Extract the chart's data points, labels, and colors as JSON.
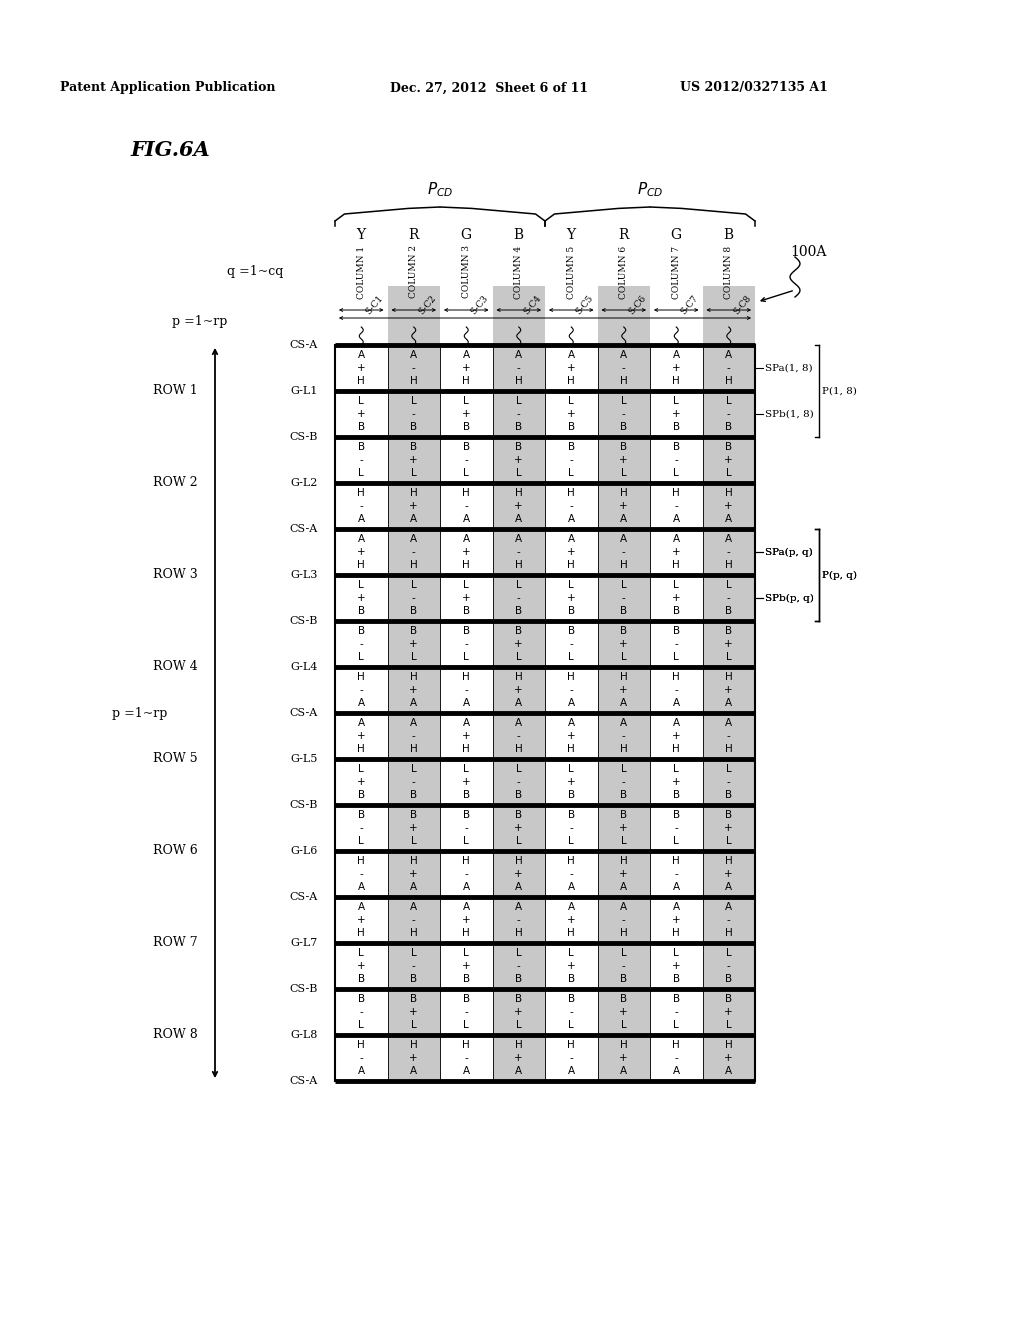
{
  "header_text1": "Patent Application Publication",
  "header_text2": "Dec. 27, 2012  Sheet 6 of 11",
  "header_text3": "US 2012/0327135 A1",
  "title": "FIG.6A",
  "columns": [
    "Y",
    "R",
    "G",
    "B",
    "Y",
    "R",
    "G",
    "B"
  ],
  "col_labels": [
    "COLUMN 1",
    "COLUMN 2",
    "COLUMN 3",
    "COLUMN 4",
    "COLUMN 5",
    "COLUMN 6",
    "COLUMN 7",
    "COLUMN 8"
  ],
  "signal_labels": [
    "S-C1",
    "S-C2",
    "S-C3",
    "S-C4",
    "S-C5",
    "S-C6",
    "S-C7",
    "S-C8"
  ],
  "q_label": "q =1~cq",
  "p_label": "p =1~rp",
  "device_label": "100A",
  "rows": [
    {
      "row_label": "ROW 1",
      "cs_top": "CS-A",
      "gate_line": "G-L1",
      "cs_bot": "CS-B",
      "spa_cells": [
        {
          "vals": [
            "A",
            "+",
            "H"
          ],
          "shade": false
        },
        {
          "vals": [
            "A",
            "-",
            "H"
          ],
          "shade": true
        },
        {
          "vals": [
            "A",
            "+",
            "H"
          ],
          "shade": false
        },
        {
          "vals": [
            "A",
            "-",
            "H"
          ],
          "shade": true
        },
        {
          "vals": [
            "A",
            "+",
            "H"
          ],
          "shade": false
        },
        {
          "vals": [
            "A",
            "-",
            "H"
          ],
          "shade": true
        },
        {
          "vals": [
            "A",
            "+",
            "H"
          ],
          "shade": false
        },
        {
          "vals": [
            "A",
            "-",
            "H"
          ],
          "shade": true
        }
      ],
      "spb_cells": [
        {
          "vals": [
            "L",
            "+",
            "B"
          ],
          "shade": false
        },
        {
          "vals": [
            "L",
            "-",
            "B"
          ],
          "shade": true
        },
        {
          "vals": [
            "L",
            "+",
            "B"
          ],
          "shade": false
        },
        {
          "vals": [
            "L",
            "-",
            "B"
          ],
          "shade": true
        },
        {
          "vals": [
            "L",
            "+",
            "B"
          ],
          "shade": false
        },
        {
          "vals": [
            "L",
            "-",
            "B"
          ],
          "shade": true
        },
        {
          "vals": [
            "L",
            "+",
            "B"
          ],
          "shade": false
        },
        {
          "vals": [
            "L",
            "-",
            "B"
          ],
          "shade": true
        }
      ],
      "spa_label": "SPa(1, 8)",
      "spb_label": "SPb(1, 8)",
      "p_label": "P(1, 8)"
    },
    {
      "row_label": "ROW 2",
      "cs_top": "CS-B",
      "gate_line": "G-L2",
      "cs_bot": "CS-A",
      "spa_cells": [
        {
          "vals": [
            "B",
            "-",
            "L"
          ],
          "shade": false
        },
        {
          "vals": [
            "B",
            "+",
            "L"
          ],
          "shade": true
        },
        {
          "vals": [
            "B",
            "-",
            "L"
          ],
          "shade": false
        },
        {
          "vals": [
            "B",
            "+",
            "L"
          ],
          "shade": true
        },
        {
          "vals": [
            "B",
            "-",
            "L"
          ],
          "shade": false
        },
        {
          "vals": [
            "B",
            "+",
            "L"
          ],
          "shade": true
        },
        {
          "vals": [
            "B",
            "-",
            "L"
          ],
          "shade": false
        },
        {
          "vals": [
            "B",
            "+",
            "L"
          ],
          "shade": true
        }
      ],
      "spb_cells": [
        {
          "vals": [
            "H",
            "-",
            "A"
          ],
          "shade": false
        },
        {
          "vals": [
            "H",
            "+",
            "A"
          ],
          "shade": true
        },
        {
          "vals": [
            "H",
            "-",
            "A"
          ],
          "shade": false
        },
        {
          "vals": [
            "H",
            "+",
            "A"
          ],
          "shade": true
        },
        {
          "vals": [
            "H",
            "-",
            "A"
          ],
          "shade": false
        },
        {
          "vals": [
            "H",
            "+",
            "A"
          ],
          "shade": true
        },
        {
          "vals": [
            "H",
            "-",
            "A"
          ],
          "shade": false
        },
        {
          "vals": [
            "H",
            "+",
            "A"
          ],
          "shade": true
        }
      ]
    },
    {
      "row_label": "ROW 3",
      "cs_top": "CS-A",
      "gate_line": "G-L3",
      "cs_bot": "CS-B",
      "spa_cells": [
        {
          "vals": [
            "A",
            "+",
            "H"
          ],
          "shade": false
        },
        {
          "vals": [
            "A",
            "-",
            "H"
          ],
          "shade": true
        },
        {
          "vals": [
            "A",
            "+",
            "H"
          ],
          "shade": false
        },
        {
          "vals": [
            "A",
            "-",
            "H"
          ],
          "shade": true
        },
        {
          "vals": [
            "A",
            "+",
            "H"
          ],
          "shade": false
        },
        {
          "vals": [
            "A",
            "-",
            "H"
          ],
          "shade": true
        },
        {
          "vals": [
            "A",
            "+",
            "H"
          ],
          "shade": false
        },
        {
          "vals": [
            "A",
            "-",
            "H"
          ],
          "shade": true
        }
      ],
      "spb_cells": [
        {
          "vals": [
            "L",
            "+",
            "B"
          ],
          "shade": false
        },
        {
          "vals": [
            "L",
            "-",
            "B"
          ],
          "shade": true
        },
        {
          "vals": [
            "L",
            "+",
            "B"
          ],
          "shade": false
        },
        {
          "vals": [
            "L",
            "-",
            "B"
          ],
          "shade": true
        },
        {
          "vals": [
            "L",
            "+",
            "B"
          ],
          "shade": false
        },
        {
          "vals": [
            "L",
            "-",
            "B"
          ],
          "shade": true
        },
        {
          "vals": [
            "L",
            "+",
            "B"
          ],
          "shade": false
        },
        {
          "vals": [
            "L",
            "-",
            "B"
          ],
          "shade": true
        }
      ],
      "spa_label": "SPa(p, q)",
      "spb_label": "SPb(p, q)",
      "p_label": "P(p, q)"
    },
    {
      "row_label": "ROW 4",
      "cs_top": "CS-B",
      "gate_line": "G-L4",
      "cs_bot": "CS-A",
      "spa_cells": [
        {
          "vals": [
            "B",
            "-",
            "L"
          ],
          "shade": false
        },
        {
          "vals": [
            "B",
            "+",
            "L"
          ],
          "shade": true
        },
        {
          "vals": [
            "B",
            "-",
            "L"
          ],
          "shade": false
        },
        {
          "vals": [
            "B",
            "+",
            "L"
          ],
          "shade": true
        },
        {
          "vals": [
            "B",
            "-",
            "L"
          ],
          "shade": false
        },
        {
          "vals": [
            "B",
            "+",
            "L"
          ],
          "shade": true
        },
        {
          "vals": [
            "B",
            "-",
            "L"
          ],
          "shade": false
        },
        {
          "vals": [
            "B",
            "+",
            "L"
          ],
          "shade": true
        }
      ],
      "spb_cells": [
        {
          "vals": [
            "H",
            "-",
            "A"
          ],
          "shade": false
        },
        {
          "vals": [
            "H",
            "+",
            "A"
          ],
          "shade": true
        },
        {
          "vals": [
            "H",
            "-",
            "A"
          ],
          "shade": false
        },
        {
          "vals": [
            "H",
            "+",
            "A"
          ],
          "shade": true
        },
        {
          "vals": [
            "H",
            "-",
            "A"
          ],
          "shade": false
        },
        {
          "vals": [
            "H",
            "+",
            "A"
          ],
          "shade": true
        },
        {
          "vals": [
            "H",
            "-",
            "A"
          ],
          "shade": false
        },
        {
          "vals": [
            "H",
            "+",
            "A"
          ],
          "shade": true
        }
      ]
    },
    {
      "row_label": "ROW 5",
      "cs_top": "CS-A",
      "gate_line": "G-L5",
      "cs_bot": "CS-B",
      "spa_cells": [
        {
          "vals": [
            "A",
            "+",
            "H"
          ],
          "shade": false
        },
        {
          "vals": [
            "A",
            "-",
            "H"
          ],
          "shade": true
        },
        {
          "vals": [
            "A",
            "+",
            "H"
          ],
          "shade": false
        },
        {
          "vals": [
            "A",
            "-",
            "H"
          ],
          "shade": true
        },
        {
          "vals": [
            "A",
            "+",
            "H"
          ],
          "shade": false
        },
        {
          "vals": [
            "A",
            "-",
            "H"
          ],
          "shade": true
        },
        {
          "vals": [
            "A",
            "+",
            "H"
          ],
          "shade": false
        },
        {
          "vals": [
            "A",
            "-",
            "H"
          ],
          "shade": true
        }
      ],
      "spb_cells": [
        {
          "vals": [
            "L",
            "+",
            "B"
          ],
          "shade": false
        },
        {
          "vals": [
            "L",
            "-",
            "B"
          ],
          "shade": true
        },
        {
          "vals": [
            "L",
            "+",
            "B"
          ],
          "shade": false
        },
        {
          "vals": [
            "L",
            "-",
            "B"
          ],
          "shade": true
        },
        {
          "vals": [
            "L",
            "+",
            "B"
          ],
          "shade": false
        },
        {
          "vals": [
            "L",
            "-",
            "B"
          ],
          "shade": true
        },
        {
          "vals": [
            "L",
            "+",
            "B"
          ],
          "shade": false
        },
        {
          "vals": [
            "L",
            "-",
            "B"
          ],
          "shade": true
        }
      ]
    },
    {
      "row_label": "ROW 6",
      "cs_top": "CS-B",
      "gate_line": "G-L6",
      "cs_bot": "CS-A",
      "spa_cells": [
        {
          "vals": [
            "B",
            "-",
            "L"
          ],
          "shade": false
        },
        {
          "vals": [
            "B",
            "+",
            "L"
          ],
          "shade": true
        },
        {
          "vals": [
            "B",
            "-",
            "L"
          ],
          "shade": false
        },
        {
          "vals": [
            "B",
            "+",
            "L"
          ],
          "shade": true
        },
        {
          "vals": [
            "B",
            "-",
            "L"
          ],
          "shade": false
        },
        {
          "vals": [
            "B",
            "+",
            "L"
          ],
          "shade": true
        },
        {
          "vals": [
            "B",
            "-",
            "L"
          ],
          "shade": false
        },
        {
          "vals": [
            "B",
            "+",
            "L"
          ],
          "shade": true
        }
      ],
      "spb_cells": [
        {
          "vals": [
            "H",
            "-",
            "A"
          ],
          "shade": false
        },
        {
          "vals": [
            "H",
            "+",
            "A"
          ],
          "shade": true
        },
        {
          "vals": [
            "H",
            "-",
            "A"
          ],
          "shade": false
        },
        {
          "vals": [
            "H",
            "+",
            "A"
          ],
          "shade": true
        },
        {
          "vals": [
            "H",
            "-",
            "A"
          ],
          "shade": false
        },
        {
          "vals": [
            "H",
            "+",
            "A"
          ],
          "shade": true
        },
        {
          "vals": [
            "H",
            "-",
            "A"
          ],
          "shade": false
        },
        {
          "vals": [
            "H",
            "+",
            "A"
          ],
          "shade": true
        }
      ]
    },
    {
      "row_label": "ROW 7",
      "cs_top": "CS-A",
      "gate_line": "G-L7",
      "cs_bot": "CS-B",
      "spa_cells": [
        {
          "vals": [
            "A",
            "+",
            "H"
          ],
          "shade": false
        },
        {
          "vals": [
            "A",
            "-",
            "H"
          ],
          "shade": true
        },
        {
          "vals": [
            "A",
            "+",
            "H"
          ],
          "shade": false
        },
        {
          "vals": [
            "A",
            "-",
            "H"
          ],
          "shade": true
        },
        {
          "vals": [
            "A",
            "+",
            "H"
          ],
          "shade": false
        },
        {
          "vals": [
            "A",
            "-",
            "H"
          ],
          "shade": true
        },
        {
          "vals": [
            "A",
            "+",
            "H"
          ],
          "shade": false
        },
        {
          "vals": [
            "A",
            "-",
            "H"
          ],
          "shade": true
        }
      ],
      "spb_cells": [
        {
          "vals": [
            "L",
            "+",
            "B"
          ],
          "shade": false
        },
        {
          "vals": [
            "L",
            "-",
            "B"
          ],
          "shade": true
        },
        {
          "vals": [
            "L",
            "+",
            "B"
          ],
          "shade": false
        },
        {
          "vals": [
            "L",
            "-",
            "B"
          ],
          "shade": true
        },
        {
          "vals": [
            "L",
            "+",
            "B"
          ],
          "shade": false
        },
        {
          "vals": [
            "L",
            "-",
            "B"
          ],
          "shade": true
        },
        {
          "vals": [
            "L",
            "+",
            "B"
          ],
          "shade": false
        },
        {
          "vals": [
            "L",
            "-",
            "B"
          ],
          "shade": true
        }
      ]
    },
    {
      "row_label": "ROW 8",
      "cs_top": "CS-B",
      "gate_line": "G-L8",
      "cs_bot": "CS-A",
      "spa_cells": [
        {
          "vals": [
            "B",
            "-",
            "L"
          ],
          "shade": false
        },
        {
          "vals": [
            "B",
            "+",
            "L"
          ],
          "shade": true
        },
        {
          "vals": [
            "B",
            "-",
            "L"
          ],
          "shade": false
        },
        {
          "vals": [
            "B",
            "+",
            "L"
          ],
          "shade": true
        },
        {
          "vals": [
            "B",
            "-",
            "L"
          ],
          "shade": false
        },
        {
          "vals": [
            "B",
            "+",
            "L"
          ],
          "shade": true
        },
        {
          "vals": [
            "B",
            "-",
            "L"
          ],
          "shade": false
        },
        {
          "vals": [
            "B",
            "+",
            "L"
          ],
          "shade": true
        }
      ],
      "spb_cells": [
        {
          "vals": [
            "H",
            "-",
            "A"
          ],
          "shade": false
        },
        {
          "vals": [
            "H",
            "+",
            "A"
          ],
          "shade": true
        },
        {
          "vals": [
            "H",
            "-",
            "A"
          ],
          "shade": false
        },
        {
          "vals": [
            "H",
            "+",
            "A"
          ],
          "shade": true
        },
        {
          "vals": [
            "H",
            "-",
            "A"
          ],
          "shade": false
        },
        {
          "vals": [
            "H",
            "+",
            "A"
          ],
          "shade": true
        },
        {
          "vals": [
            "H",
            "-",
            "A"
          ],
          "shade": false
        },
        {
          "vals": [
            "H",
            "+",
            "A"
          ],
          "shade": true
        }
      ]
    }
  ],
  "bg_color": "#ffffff",
  "cell_shade_color": "#c8c8c8",
  "cell_bg_color": "#ffffff"
}
